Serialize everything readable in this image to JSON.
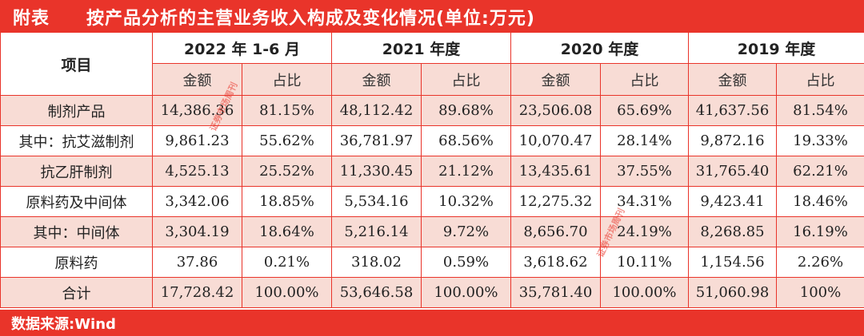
{
  "title": {
    "label": "附表",
    "text": "按产品分析的主营业务收入构成及变化情况(单位:万元)"
  },
  "header": {
    "item": "项目",
    "periods": [
      "2022 年 1-6 月",
      "2021 年度",
      "2020 年度",
      "2019 年度"
    ],
    "amount": "金额",
    "share": "占比"
  },
  "rows": [
    {
      "name": "制剂产品",
      "cells": [
        "14,386.36",
        "81.15%",
        "48,112.42",
        "89.68%",
        "23,506.08",
        "65.69%",
        "41,637.56",
        "81.54%"
      ]
    },
    {
      "name": "其中：抗艾滋制剂",
      "cells": [
        "9,861.23",
        "55.62%",
        "36,781.97",
        "68.56%",
        "10,070.47",
        "28.14%",
        "9,872.16",
        "19.33%"
      ]
    },
    {
      "name": "抗乙肝制剂",
      "cells": [
        "4,525.13",
        "25.52%",
        "11,330.45",
        "21.12%",
        "13,435.61",
        "37.55%",
        "31,765.40",
        "62.21%"
      ]
    },
    {
      "name": "原料药及中间体",
      "cells": [
        "3,342.06",
        "18.85%",
        "5,534.16",
        "10.32%",
        "12,275.32",
        "34.31%",
        "9,423.41",
        "18.46%"
      ]
    },
    {
      "name": "其中：中间体",
      "cells": [
        "3,304.19",
        "18.64%",
        "5,216.14",
        "9.72%",
        "8,656.70",
        "24.19%",
        "8,268.85",
        "16.19%"
      ]
    },
    {
      "name": "原料药",
      "cells": [
        "37.86",
        "0.21%",
        "318.02",
        "0.59%",
        "3,618.62",
        "10.11%",
        "1,154.56",
        "2.26%"
      ]
    },
    {
      "name": "合计",
      "cells": [
        "17,728.42",
        "100.00%",
        "53,646.58",
        "100.00%",
        "35,781.40",
        "100.00%",
        "51,060.98",
        "100%"
      ]
    }
  ],
  "footer": {
    "source": "数据来源:Wind"
  },
  "watermark": {
    "text": "证券市场周刊"
  },
  "colors": {
    "accent": "#e9342a",
    "row_tint": "#f8dcd5"
  }
}
